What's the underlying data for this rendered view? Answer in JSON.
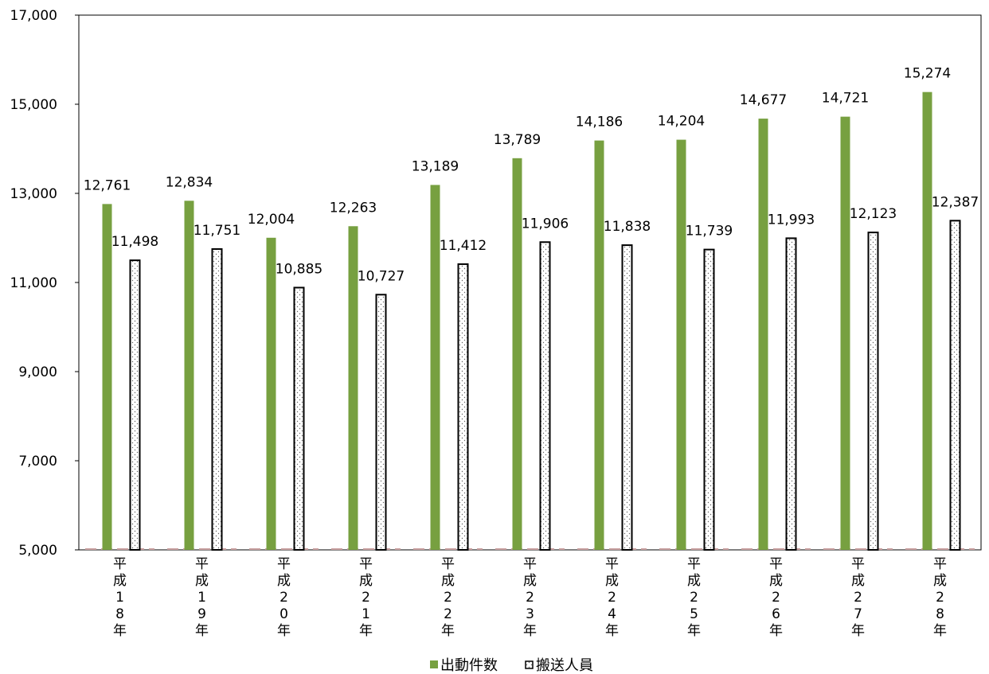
{
  "chart_data": {
    "type": "bar",
    "categories": [
      "平成18年",
      "平成19年",
      "平成20年",
      "平成21年",
      "平成22年",
      "平成23年",
      "平成24年",
      "平成25年",
      "平成26年",
      "平成27年",
      "平成28年"
    ],
    "category_label_chars": [
      [
        "平",
        "成",
        "1",
        "8",
        "年"
      ],
      [
        "平",
        "成",
        "1",
        "9",
        "年"
      ],
      [
        "平",
        "成",
        "2",
        "0",
        "年"
      ],
      [
        "平",
        "成",
        "2",
        "1",
        "年"
      ],
      [
        "平",
        "成",
        "2",
        "2",
        "年"
      ],
      [
        "平",
        "成",
        "2",
        "3",
        "年"
      ],
      [
        "平",
        "成",
        "2",
        "4",
        "年"
      ],
      [
        "平",
        "成",
        "2",
        "5",
        "年"
      ],
      [
        "平",
        "成",
        "2",
        "6",
        "年"
      ],
      [
        "平",
        "成",
        "2",
        "7",
        "年"
      ],
      [
        "平",
        "成",
        "2",
        "8",
        "年"
      ]
    ],
    "series": [
      {
        "name": "出動件数",
        "color": "#77A040",
        "fill": "solid",
        "values": [
          12761,
          12834,
          12004,
          12263,
          13189,
          13789,
          14186,
          14204,
          14677,
          14721,
          15274
        ],
        "labels": [
          "12,761",
          "12,834",
          "12,004",
          "12,263",
          "13,189",
          "13,789",
          "14,186",
          "14,204",
          "14,677",
          "14,721",
          "15,274"
        ]
      },
      {
        "name": "搬送人員",
        "color": "#FFFFFF",
        "stroke": "#000000",
        "fill": "dotted-pattern",
        "values": [
          11498,
          11751,
          10885,
          10727,
          11412,
          11906,
          11838,
          11739,
          11993,
          12123,
          12387
        ],
        "labels": [
          "11,498",
          "11,751",
          "10,885",
          "10,727",
          "11,412",
          "11,906",
          "11,838",
          "11,739",
          "11,993",
          "12,123",
          "12,387"
        ]
      }
    ],
    "yaxis": {
      "ylim": [
        5000,
        17000
      ],
      "ticks": [
        5000,
        7000,
        9000,
        11000,
        13000,
        15000,
        17000
      ],
      "tick_labels": [
        "5,000",
        "7,000",
        "9,000",
        "11,000",
        "13,000",
        "15,000",
        "17,000"
      ]
    },
    "title": "",
    "xlabel": "",
    "ylabel": "",
    "grid": false,
    "legend_position": "bottom-center"
  }
}
